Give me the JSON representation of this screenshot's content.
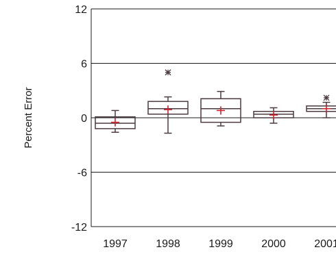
{
  "chart_data": {
    "type": "box",
    "title": "",
    "xlabel": "",
    "ylabel": "Percent Error",
    "ylim": [
      -12,
      12
    ],
    "yticks": [
      12,
      6,
      0,
      -6,
      -12
    ],
    "grid": "horizontal",
    "categories": [
      "1997",
      "1998",
      "1999",
      "2000",
      "2001"
    ],
    "boxes": [
      {
        "category": "1997",
        "min": -1.6,
        "q1": -1.2,
        "median": -0.6,
        "q3": 0.1,
        "max": 0.8,
        "mean": -0.5,
        "outliers": []
      },
      {
        "category": "1998",
        "min": -1.7,
        "q1": 0.4,
        "median": 1.0,
        "q3": 1.8,
        "max": 2.3,
        "mean": 0.9,
        "outliers": [
          5.0
        ]
      },
      {
        "category": "1999",
        "min": -0.9,
        "q1": -0.5,
        "median": 1.0,
        "q3": 2.1,
        "max": 2.9,
        "mean": 0.8,
        "outliers": []
      },
      {
        "category": "2000",
        "min": -0.6,
        "q1": 0.0,
        "median": 0.4,
        "q3": 0.7,
        "max": 1.1,
        "mean": 0.3,
        "outliers": []
      },
      {
        "category": "2001",
        "min": 0.0,
        "q1": 0.7,
        "median": 1.0,
        "q3": 1.3,
        "max": 1.7,
        "mean": 1.0,
        "outliers": [
          2.2
        ]
      }
    ],
    "colors": {
      "box": "#4a3a40",
      "mean": "#d4202a",
      "outlier": "#4a3a40",
      "grid": "#1a1a1a"
    }
  }
}
